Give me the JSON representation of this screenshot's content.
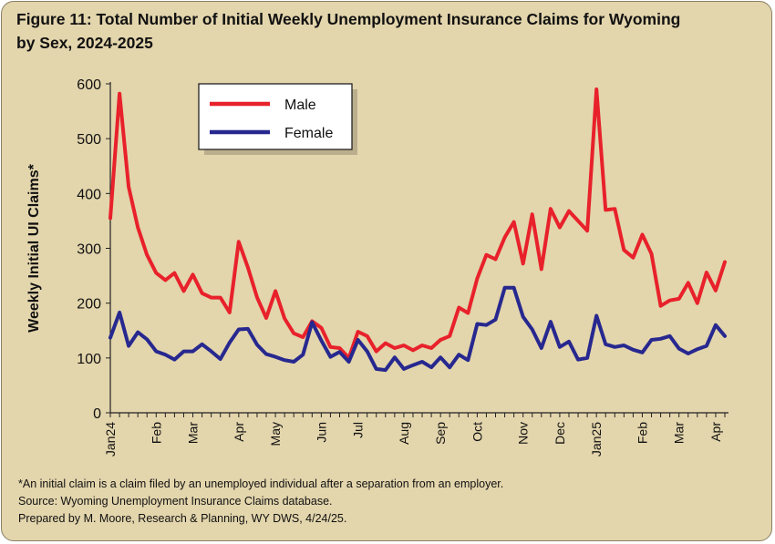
{
  "title_line1": "Figure 11: Total Number of Initial Weekly Unemployment Insurance Claims for Wyoming",
  "title_line2": "by Sex, 2024-2025",
  "footnotes": [
    "*An initial claim is a claim filed by an unemployed individual after a separation from an employer.",
    "Source: Wyoming Unemployment Insurance Claims database.",
    "Prepared by M. Moore, Research & Planning, WY DWS, 4/24/25."
  ],
  "chart_data": {
    "type": "line",
    "ylabel": "Weekly Initial UI Claims*",
    "xlabel": "",
    "ylim": [
      0,
      600
    ],
    "yticks": [
      0,
      100,
      200,
      300,
      400,
      500,
      600
    ],
    "x_tick_labels": [
      {
        "label": "Jan24",
        "week": 1
      },
      {
        "label": "Feb",
        "week": 6
      },
      {
        "label": "Mar",
        "week": 10
      },
      {
        "label": "Apr",
        "week": 15
      },
      {
        "label": "May",
        "week": 19
      },
      {
        "label": "Jun",
        "week": 24
      },
      {
        "label": "Jul",
        "week": 28
      },
      {
        "label": "Aug",
        "week": 33
      },
      {
        "label": "Sep",
        "week": 37
      },
      {
        "label": "Oct",
        "week": 41
      },
      {
        "label": "Nov",
        "week": 46
      },
      {
        "label": "Dec",
        "week": 50
      },
      {
        "label": "Jan25",
        "week": 54
      },
      {
        "label": "Feb",
        "week": 59
      },
      {
        "label": "Mar",
        "week": 63
      },
      {
        "label": "Apr",
        "week": 67
      }
    ],
    "legend_position": "top-left",
    "grid": false,
    "series": [
      {
        "name": "Male",
        "color": "#e8212b",
        "values": [
          355,
          582,
          412,
          338,
          288,
          255,
          242,
          255,
          222,
          252,
          218,
          210,
          210,
          183,
          312,
          265,
          210,
          173,
          222,
          172,
          145,
          138,
          167,
          155,
          120,
          118,
          100,
          148,
          140,
          112,
          127,
          118,
          123,
          114,
          123,
          118,
          133,
          140,
          192,
          182,
          245,
          288,
          280,
          320,
          348,
          272,
          362,
          262,
          372,
          338,
          368,
          350,
          332,
          590,
          370,
          372,
          297,
          283,
          325,
          290,
          195,
          205,
          208,
          237,
          200,
          256,
          223,
          275
        ]
      },
      {
        "name": "Female",
        "color": "#27288f",
        "values": [
          137,
          183,
          122,
          147,
          134,
          112,
          106,
          97,
          112,
          112,
          125,
          112,
          98,
          128,
          152,
          153,
          124,
          107,
          102,
          96,
          93,
          106,
          165,
          132,
          102,
          111,
          93,
          133,
          112,
          80,
          78,
          101,
          80,
          87,
          93,
          83,
          101,
          83,
          106,
          96,
          162,
          160,
          170,
          228,
          228,
          175,
          152,
          118,
          166,
          120,
          130,
          97,
          100,
          177,
          125,
          120,
          123,
          115,
          110,
          133,
          135,
          140,
          117,
          108,
          116,
          122,
          160,
          140
        ]
      }
    ]
  }
}
